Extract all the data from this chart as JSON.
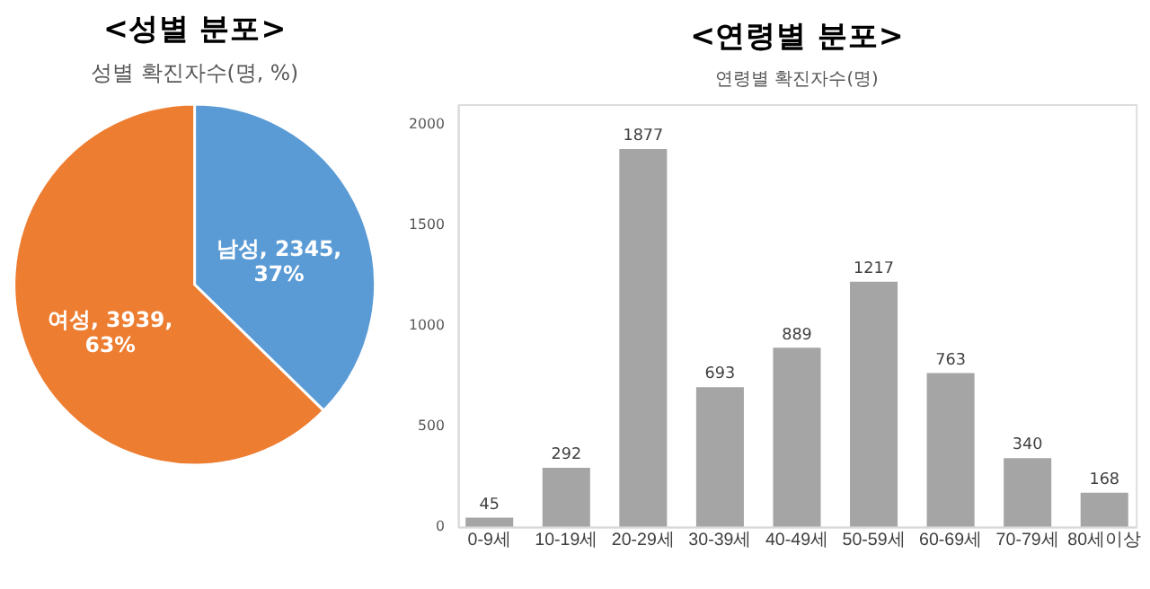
{
  "chart_data": [
    {
      "type": "pie",
      "title": "<성별 분포>",
      "subtitle": "성별 확진자수(명, %)",
      "categories": [
        "남성",
        "여성"
      ],
      "values": [
        2345,
        3939
      ],
      "colors": [
        "#5b9bd5",
        "#ed7d31"
      ],
      "value_labels": [
        "2345, 37%",
        "3939, 63%"
      ],
      "legend": false
    },
    {
      "type": "bar",
      "title": "<연령별 분포>",
      "subtitle": "연령별 확진자수(명)",
      "categories": [
        "0-9세",
        "10-19세",
        "20-29세",
        "30-39세",
        "40-49세",
        "50-59세",
        "60-69세",
        "70-79세",
        "80세이상"
      ],
      "values": [
        45,
        292,
        1877,
        693,
        889,
        1217,
        763,
        340,
        168
      ],
      "color": "#a5a5a5",
      "ylim": [
        0,
        2100
      ],
      "yticks": [
        0,
        500,
        1000,
        1500,
        2000
      ],
      "grid": false,
      "data_labels": true
    }
  ]
}
